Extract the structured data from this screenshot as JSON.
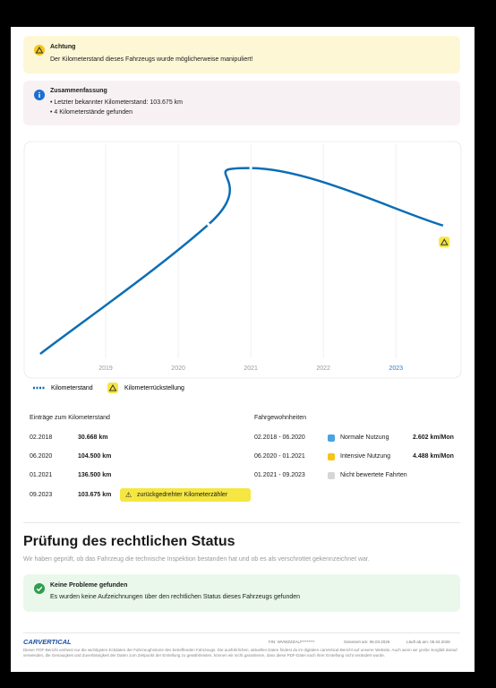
{
  "alert": {
    "title": "Achtung",
    "text": "Der Kilometerstand dieses Fahrzeugs wurde möglicherweise manipuliert!"
  },
  "summary": {
    "title": "Zusammenfassung",
    "items": [
      "Letzter bekannter Kilometerstand: 103.675 km",
      "4 Kilometerstände gefunden"
    ]
  },
  "chart_data": {
    "type": "line",
    "x": [
      "02.2018",
      "06.2020",
      "01.2021",
      "09.2023"
    ],
    "series": [
      {
        "name": "Kilometerstand",
        "color": "#0b6db5",
        "values": [
          30668,
          104500,
          136500,
          103675
        ]
      }
    ],
    "xlim": [
      2018,
      2023.75
    ],
    "xticks": [
      2019,
      2020,
      2021,
      2022,
      2023
    ],
    "ylim": [
      28600,
      149000
    ],
    "grid": true,
    "rollback_legend": "Kilometerrückstellung"
  },
  "entries": {
    "title": "Einträge zum Kilometerstand",
    "rows": [
      [
        "02.2018",
        "30.668 km"
      ],
      [
        "06.2020",
        "104.500 km"
      ],
      [
        "01.2021",
        "136.500 km"
      ],
      [
        "09.2023",
        "103.675 km"
      ]
    ],
    "flag": "zurückgedrehter Kilometerzähler"
  },
  "habits": {
    "title": "Fahrgewohnheiten",
    "rows": [
      {
        "period": "02.2018 - 06.2020",
        "label": "Normale Nutzung",
        "rate": "2.602 km/Mon",
        "color": "#4aa3e0"
      },
      {
        "period": "06.2020 - 01.2021",
        "label": "Intensive Nutzung",
        "rate": "4.488 km/Mon",
        "color": "#f5c518"
      },
      {
        "period": "01.2021 - 09.2023",
        "label": "Nicht bewertete Fahrten",
        "color": "#d6d6d6"
      }
    ]
  },
  "legal": {
    "heading": "Prüfung des rechtlichen Status",
    "text": "Wir haben geprüft, ob das Fahrzeug die technische Inspektion bestanden hat und ob es als verschrottet gekennzeichnet war.",
    "result_title": "Keine Probleme gefunden",
    "result_text": "Es wurden keine Aufzeichnungen über den rechtlichen Status dieses Fahrzeugs gefunden"
  },
  "footer": {
    "brand": "CARVERTICAL",
    "fin": "FIN: WVWZZZAU*********",
    "generated": "Generiert am: 06.03.2026",
    "expires": "Läuft ab am: 05.04.2026",
    "disclaimer": "Dieser PDF-Bericht umfasst nur die wichtigsten Eckdaten der Fahrzeughistorie des betreffenden Fahrzeugs. Die ausführlichen, aktuellen Daten findest du im digitalen carVertical-Bericht auf unserer Website. Auch wenn wir große Sorgfalt darauf verwenden, die Genauigkeit und Zuverlässigkeit der Daten zum Zeitpunkt der Erstellung zu gewährleisten, können wir nicht garantieren, dass diese PDF-Datei nach ihrer Erstellung nicht verändert wurde."
  }
}
